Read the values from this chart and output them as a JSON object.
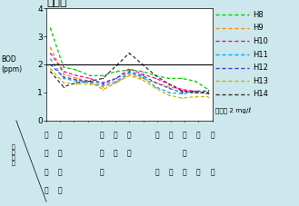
{
  "title": "最上川",
  "ylim": [
    0,
    4
  ],
  "yticks": [
    0,
    1,
    2,
    3,
    4
  ],
  "standard_line": 2,
  "standard_label": "基準値 2 mg/ℓ",
  "num_stations": 13,
  "series": [
    {
      "name": "H8",
      "color": "#00cc00",
      "values": [
        3.3,
        1.9,
        1.8,
        1.6,
        1.6,
        1.75,
        1.8,
        1.75,
        1.6,
        1.5,
        1.5,
        1.4,
        1.1
      ]
    },
    {
      "name": "H9",
      "color": "#ff8800",
      "values": [
        2.6,
        1.65,
        1.5,
        1.4,
        1.1,
        1.35,
        1.65,
        1.5,
        1.35,
        1.2,
        1.1,
        1.0,
        0.95
      ]
    },
    {
      "name": "H10",
      "color": "#ff00aa",
      "values": [
        2.4,
        1.75,
        1.6,
        1.5,
        1.3,
        1.5,
        1.85,
        1.65,
        1.5,
        1.3,
        1.1,
        1.05,
        0.95
      ]
    },
    {
      "name": "H11",
      "color": "#00aaff",
      "values": [
        2.2,
        1.5,
        1.4,
        1.35,
        1.25,
        1.4,
        1.7,
        1.55,
        1.2,
        1.0,
        0.95,
        1.0,
        1.0
      ]
    },
    {
      "name": "H12",
      "color": "#4444cc",
      "values": [
        2.0,
        1.55,
        1.45,
        1.4,
        1.35,
        1.5,
        1.75,
        1.6,
        1.35,
        1.15,
        1.0,
        1.05,
        1.05
      ]
    },
    {
      "name": "H13",
      "color": "#bbbb00",
      "values": [
        1.85,
        1.35,
        1.3,
        1.3,
        1.2,
        1.35,
        1.6,
        1.45,
        1.15,
        0.9,
        0.8,
        0.85,
        0.85
      ]
    },
    {
      "name": "H14",
      "color": "#333333",
      "values": [
        1.75,
        1.2,
        1.35,
        1.4,
        1.5,
        1.95,
        2.4,
        2.0,
        1.6,
        1.3,
        1.05,
        1.0,
        1.0
      ]
    }
  ],
  "bg_color": "#cce8ec",
  "plot_bg": "#ffffff",
  "rows": [
    [
      "槕",
      "小",
      "",
      "",
      "長",
      "下",
      "稲",
      "",
      "堀",
      "高",
      "砂",
      "両",
      "河"
    ],
    [
      "野",
      "目",
      "",
      "",
      "崎",
      "野",
      "下",
      "",
      "",
      "",
      "羽",
      "",
      ""
    ],
    [
      "測",
      "横",
      "",
      "",
      "橋",
      "",
      "",
      "",
      "内",
      "屋",
      "越",
      "橋",
      "口"
    ],
    [
      "点",
      "出",
      "",
      "",
      "",
      "",
      "",
      "",
      "",
      "",
      "",
      "",
      ""
    ]
  ],
  "bod_label": "BOD\n(ppm)"
}
